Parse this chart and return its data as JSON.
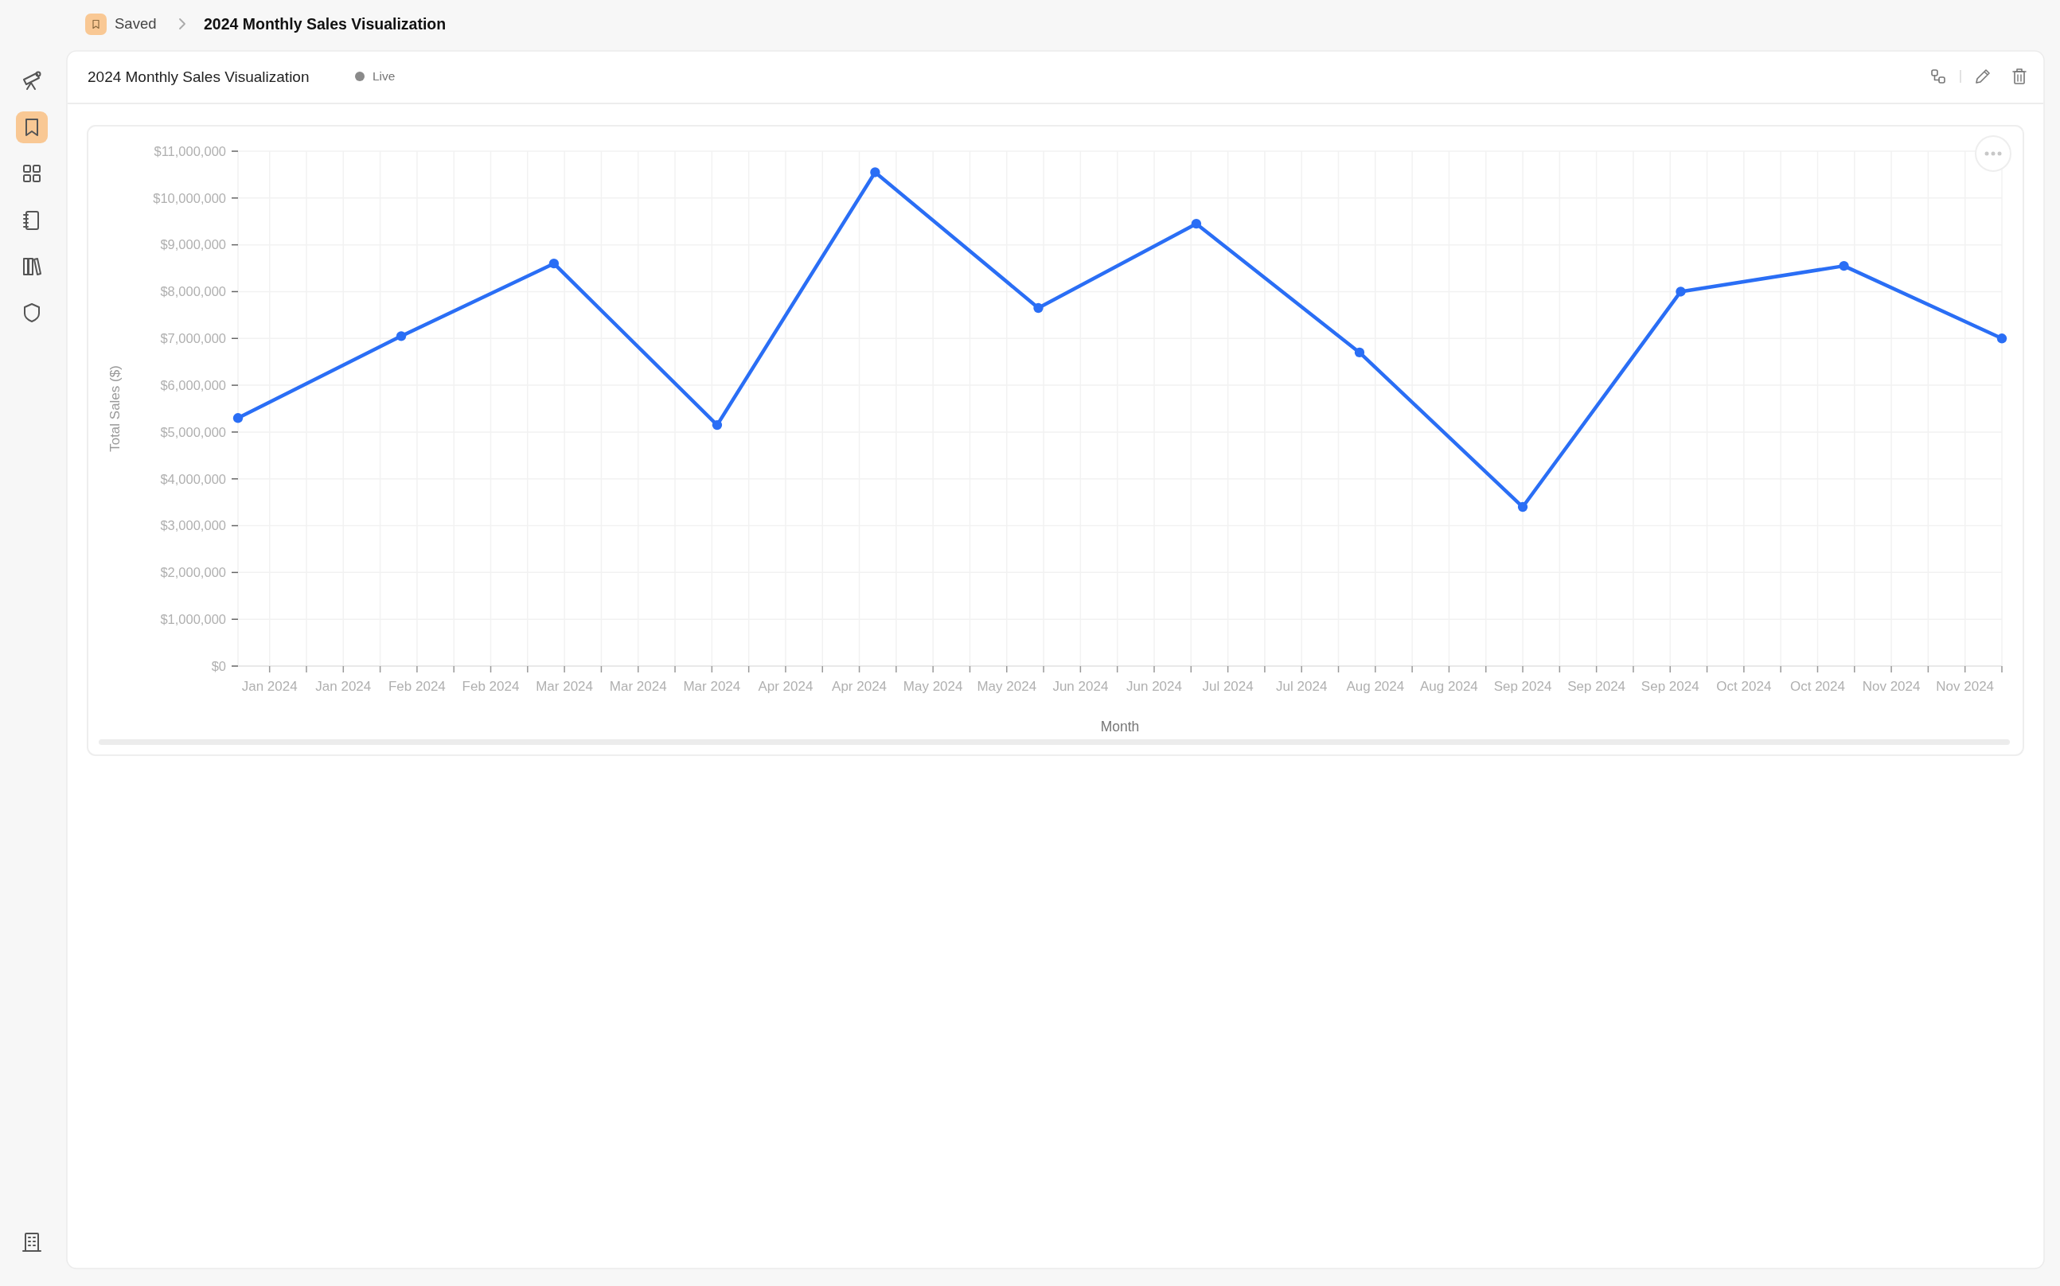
{
  "chart_data": {
    "type": "line",
    "title": "2024 Monthly Sales Visualization",
    "xlabel": "Month",
    "ylabel": "Total Sales ($)",
    "annotations": [
      "Saved",
      "2024 Monthly Sales Visualization",
      "Live"
    ],
    "x": [
      "2024-01-01",
      "2024-02-01",
      "2024-03-01",
      "2024-04-01",
      "2024-05-01",
      "2024-06-01",
      "2024-07-01",
      "2024-08-01",
      "2024-09-01",
      "2024-10-01",
      "2024-11-01",
      "2024-12-01"
    ],
    "values": [
      5300000,
      7050000,
      8600000,
      5150000,
      10550000,
      7650000,
      9450000,
      6700000,
      3400000,
      8000000,
      8550000,
      7000000
    ],
    "color": "#2a6ef5",
    "marker": "circle",
    "line_style": "solid",
    "grid": true,
    "xlim": [
      "2024-01-01",
      "2024-12-01"
    ],
    "xticks": [
      {
        "value": "2024-01-07",
        "label": "Jan 2024"
      },
      {
        "value": "2024-01-14",
        "label": null
      },
      {
        "value": "2024-01-21",
        "label": "Jan 2024"
      },
      {
        "value": "2024-01-28",
        "label": null
      },
      {
        "value": "2024-02-04",
        "label": "Feb 2024"
      },
      {
        "value": "2024-02-11",
        "label": null
      },
      {
        "value": "2024-02-18",
        "label": "Feb 2024"
      },
      {
        "value": "2024-02-25",
        "label": null
      },
      {
        "value": "2024-03-03",
        "label": "Mar 2024"
      },
      {
        "value": "2024-03-10",
        "label": null
      },
      {
        "value": "2024-03-17",
        "label": "Mar 2024"
      },
      {
        "value": "2024-03-24",
        "label": null
      },
      {
        "value": "2024-03-31",
        "label": "Mar 2024"
      },
      {
        "value": "2024-04-07",
        "label": null
      },
      {
        "value": "2024-04-14",
        "label": "Apr 2024"
      },
      {
        "value": "2024-04-21",
        "label": null
      },
      {
        "value": "2024-04-28",
        "label": "Apr 2024"
      },
      {
        "value": "2024-05-05",
        "label": null
      },
      {
        "value": "2024-05-12",
        "label": "May 2024"
      },
      {
        "value": "2024-05-19",
        "label": null
      },
      {
        "value": "2024-05-26",
        "label": "May 2024"
      },
      {
        "value": "2024-06-02",
        "label": null
      },
      {
        "value": "2024-06-09",
        "label": "Jun 2024"
      },
      {
        "value": "2024-06-16",
        "label": null
      },
      {
        "value": "2024-06-23",
        "label": "Jun 2024"
      },
      {
        "value": "2024-06-30",
        "label": null
      },
      {
        "value": "2024-07-07",
        "label": "Jul 2024"
      },
      {
        "value": "2024-07-14",
        "label": null
      },
      {
        "value": "2024-07-21",
        "label": "Jul 2024"
      },
      {
        "value": "2024-07-28",
        "label": null
      },
      {
        "value": "2024-08-04",
        "label": "Aug 2024"
      },
      {
        "value": "2024-08-11",
        "label": null
      },
      {
        "value": "2024-08-18",
        "label": "Aug 2024"
      },
      {
        "value": "2024-08-25",
        "label": null
      },
      {
        "value": "2024-09-01",
        "label": "Sep 2024"
      },
      {
        "value": "2024-09-08",
        "label": null
      },
      {
        "value": "2024-09-15",
        "label": "Sep 2024"
      },
      {
        "value": "2024-09-22",
        "label": null
      },
      {
        "value": "2024-09-29",
        "label": "Sep 2024"
      },
      {
        "value": "2024-10-06",
        "label": null
      },
      {
        "value": "2024-10-13",
        "label": "Oct 2024"
      },
      {
        "value": "2024-10-20",
        "label": null
      },
      {
        "value": "2024-10-27",
        "label": "Oct 2024"
      },
      {
        "value": "2024-11-03",
        "label": null
      },
      {
        "value": "2024-11-10",
        "label": "Nov 2024"
      },
      {
        "value": "2024-11-17",
        "label": null
      },
      {
        "value": "2024-11-24",
        "label": "Nov 2024"
      },
      {
        "value": "2024-12-01",
        "label": null
      }
    ],
    "ylim": [
      0,
      11000000
    ],
    "yticks": [
      {
        "value": 0,
        "label": "$0"
      },
      {
        "value": 1000000,
        "label": "$1,000,000"
      },
      {
        "value": 2000000,
        "label": "$2,000,000"
      },
      {
        "value": 3000000,
        "label": "$3,000,000"
      },
      {
        "value": 4000000,
        "label": "$4,000,000"
      },
      {
        "value": 5000000,
        "label": "$5,000,000"
      },
      {
        "value": 6000000,
        "label": "$6,000,000"
      },
      {
        "value": 7000000,
        "label": "$7,000,000"
      },
      {
        "value": 8000000,
        "label": "$8,000,000"
      },
      {
        "value": 9000000,
        "label": "$9,000,000"
      },
      {
        "value": 10000000,
        "label": "$10,000,000"
      },
      {
        "value": 11000000,
        "label": "$11,000,000"
      }
    ]
  }
}
